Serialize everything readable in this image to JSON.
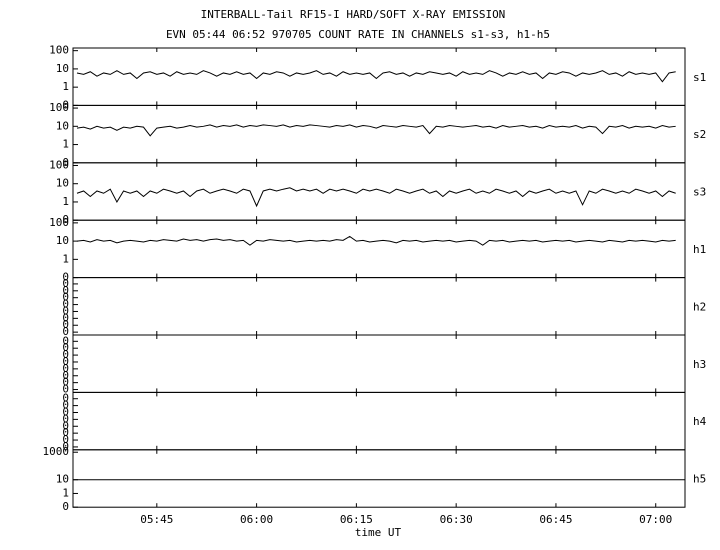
{
  "chart_data": {
    "type": "line",
    "title": "INTERBALL-Tail RF15-I HARD/SOFT X-RAY EMISSION",
    "subtitle": "EVN 05:44 06:52 970705  COUNT RATE IN CHANNELS s1-s3, h1-h5",
    "xlabel": "time UT",
    "color": "#000000",
    "xlim": [
      332.4,
      424.4
    ],
    "xticks": [
      {
        "value": 345,
        "label": "05:45"
      },
      {
        "value": 360,
        "label": "06:00"
      },
      {
        "value": 375,
        "label": "06:15"
      },
      {
        "value": 390,
        "label": "06:30"
      },
      {
        "value": 405,
        "label": "06:45"
      },
      {
        "value": 420,
        "label": "07:00"
      }
    ],
    "series": [
      {
        "name": "s1",
        "log": true,
        "ylim": [
          0.1,
          140
        ],
        "yticks": [
          100,
          10,
          1,
          {
            "value": 0.1,
            "label": "0"
          }
        ],
        "x": [
          333,
          334,
          335,
          336,
          337,
          338,
          339,
          340,
          341,
          342,
          343,
          344,
          345,
          346,
          347,
          348,
          349,
          350,
          351,
          352,
          353,
          354,
          355,
          356,
          357,
          358,
          359,
          360,
          361,
          362,
          363,
          364,
          365,
          366,
          367,
          368,
          369,
          370,
          371,
          372,
          373,
          374,
          375,
          376,
          377,
          378,
          379,
          380,
          381,
          382,
          383,
          384,
          385,
          386,
          387,
          388,
          389,
          390,
          391,
          392,
          393,
          394,
          395,
          396,
          397,
          398,
          399,
          400,
          401,
          402,
          403,
          404,
          405,
          406,
          407,
          408,
          409,
          410,
          411,
          412,
          413,
          414,
          415,
          416,
          417,
          418,
          419,
          420,
          421,
          422,
          423
        ],
        "values": [
          6,
          5,
          7,
          4,
          6,
          5,
          8,
          5,
          6,
          3,
          6,
          7,
          5,
          6,
          4,
          7,
          5,
          6,
          5,
          8,
          6,
          4,
          6,
          5,
          7,
          5,
          6,
          3,
          6,
          5,
          7,
          6,
          4,
          6,
          5,
          6,
          8,
          5,
          6,
          4,
          7,
          5,
          6,
          5,
          6,
          3,
          6,
          7,
          5,
          6,
          4,
          6,
          5,
          7,
          6,
          5,
          6,
          4,
          7,
          5,
          6,
          5,
          8,
          6,
          4,
          6,
          5,
          7,
          5,
          6,
          3,
          6,
          5,
          7,
          6,
          4,
          6,
          5,
          6,
          8,
          5,
          6,
          4,
          7,
          5,
          6,
          5,
          6,
          2,
          6,
          7
        ]
      },
      {
        "name": "s2",
        "log": true,
        "ylim": [
          0.1,
          140
        ],
        "yticks": [
          100,
          10,
          1,
          {
            "value": 0.1,
            "label": "0"
          }
        ],
        "x": [
          333,
          334,
          335,
          336,
          337,
          338,
          339,
          340,
          341,
          342,
          343,
          344,
          345,
          346,
          347,
          348,
          349,
          350,
          351,
          352,
          353,
          354,
          355,
          356,
          357,
          358,
          359,
          360,
          361,
          362,
          363,
          364,
          365,
          366,
          367,
          368,
          369,
          370,
          371,
          372,
          373,
          374,
          375,
          376,
          377,
          378,
          379,
          380,
          381,
          382,
          383,
          384,
          385,
          386,
          387,
          388,
          389,
          390,
          391,
          392,
          393,
          394,
          395,
          396,
          397,
          398,
          399,
          400,
          401,
          402,
          403,
          404,
          405,
          406,
          407,
          408,
          409,
          410,
          411,
          412,
          413,
          414,
          415,
          416,
          417,
          418,
          419,
          420,
          421,
          422,
          423
        ],
        "values": [
          8,
          9,
          7,
          10,
          8,
          9,
          6,
          9,
          8,
          10,
          9,
          3,
          8,
          9,
          10,
          8,
          9,
          11,
          9,
          10,
          12,
          9,
          11,
          10,
          12,
          9,
          11,
          10,
          12,
          11,
          10,
          12,
          9,
          11,
          10,
          12,
          11,
          10,
          9,
          11,
          10,
          12,
          9,
          11,
          10,
          8,
          11,
          10,
          9,
          11,
          10,
          9,
          11,
          4,
          10,
          9,
          11,
          10,
          9,
          10,
          11,
          9,
          10,
          8,
          11,
          9,
          10,
          11,
          9,
          10,
          8,
          11,
          9,
          10,
          9,
          11,
          8,
          10,
          9,
          4,
          10,
          9,
          11,
          8,
          10,
          9,
          10,
          8,
          11,
          9,
          10
        ]
      },
      {
        "name": "s3",
        "log": true,
        "ylim": [
          0.1,
          140
        ],
        "yticks": [
          100,
          10,
          1,
          {
            "value": 0.1,
            "label": "0"
          }
        ],
        "x": [
          333,
          334,
          335,
          336,
          337,
          338,
          339,
          340,
          341,
          342,
          343,
          344,
          345,
          346,
          347,
          348,
          349,
          350,
          351,
          352,
          353,
          354,
          355,
          356,
          357,
          358,
          359,
          360,
          361,
          362,
          363,
          364,
          365,
          366,
          367,
          368,
          369,
          370,
          371,
          372,
          373,
          374,
          375,
          376,
          377,
          378,
          379,
          380,
          381,
          382,
          383,
          384,
          385,
          386,
          387,
          388,
          389,
          390,
          391,
          392,
          393,
          394,
          395,
          396,
          397,
          398,
          399,
          400,
          401,
          402,
          403,
          404,
          405,
          406,
          407,
          408,
          409,
          410,
          411,
          412,
          413,
          414,
          415,
          416,
          417,
          418,
          419,
          420,
          421,
          422,
          423
        ],
        "values": [
          3,
          4,
          2,
          4,
          3,
          5,
          1,
          4,
          3,
          4,
          2,
          4,
          3,
          5,
          4,
          3,
          4,
          2,
          4,
          5,
          3,
          4,
          5,
          4,
          3,
          5,
          4,
          0.6,
          4,
          5,
          4,
          5,
          6,
          4,
          5,
          4,
          5,
          3,
          5,
          4,
          5,
          4,
          3,
          5,
          4,
          5,
          4,
          3,
          5,
          4,
          3,
          4,
          5,
          3,
          4,
          2,
          4,
          3,
          4,
          5,
          3,
          4,
          3,
          5,
          4,
          3,
          4,
          2,
          4,
          3,
          4,
          5,
          3,
          4,
          3,
          4,
          0.7,
          4,
          3,
          5,
          4,
          3,
          4,
          3,
          5,
          4,
          3,
          4,
          2,
          4,
          3
        ]
      },
      {
        "name": "h1",
        "log": true,
        "ylim": [
          0.1,
          140
        ],
        "yticks": [
          100,
          10,
          1,
          {
            "value": 0.1,
            "label": "0"
          }
        ],
        "x": [
          333,
          334,
          335,
          336,
          337,
          338,
          339,
          340,
          341,
          342,
          343,
          344,
          345,
          346,
          347,
          348,
          349,
          350,
          351,
          352,
          353,
          354,
          355,
          356,
          357,
          358,
          359,
          360,
          361,
          362,
          363,
          364,
          365,
          366,
          367,
          368,
          369,
          370,
          371,
          372,
          373,
          374,
          375,
          376,
          377,
          378,
          379,
          380,
          381,
          382,
          383,
          384,
          385,
          386,
          387,
          388,
          389,
          390,
          391,
          392,
          393,
          394,
          395,
          396,
          397,
          398,
          399,
          400,
          401,
          402,
          403,
          404,
          405,
          406,
          407,
          408,
          409,
          410,
          411,
          412,
          413,
          414,
          415,
          416,
          417,
          418,
          419,
          420,
          421,
          422,
          423
        ],
        "values": [
          10,
          11,
          9,
          12,
          10,
          11,
          8,
          10,
          11,
          10,
          9,
          11,
          10,
          12,
          11,
          10,
          13,
          11,
          12,
          10,
          12,
          13,
          11,
          12,
          10,
          11,
          6,
          11,
          10,
          12,
          11,
          10,
          11,
          9,
          10,
          11,
          10,
          11,
          10,
          12,
          11,
          18,
          10,
          11,
          9,
          10,
          11,
          10,
          8,
          11,
          10,
          11,
          9,
          10,
          11,
          10,
          11,
          9,
          10,
          11,
          10,
          6,
          11,
          10,
          11,
          9,
          10,
          11,
          10,
          11,
          9,
          10,
          11,
          10,
          11,
          9,
          10,
          11,
          10,
          9,
          11,
          10,
          9,
          11,
          10,
          11,
          10,
          9,
          11,
          10,
          11
        ]
      },
      {
        "name": "h2",
        "log": false,
        "ylim": [
          0,
          1
        ],
        "yticks": [
          {
            "value": 0.05,
            "label": "0"
          },
          {
            "value": 0.17,
            "label": "0"
          },
          {
            "value": 0.29,
            "label": "0"
          },
          {
            "value": 0.41,
            "label": "0"
          },
          {
            "value": 0.53,
            "label": "0"
          },
          {
            "value": 0.65,
            "label": "0"
          },
          {
            "value": 0.77,
            "label": "0"
          },
          {
            "value": 0.89,
            "label": "0"
          }
        ]
      },
      {
        "name": "h3",
        "log": false,
        "ylim": [
          0,
          1
        ],
        "yticks": [
          {
            "value": 0.05,
            "label": "0"
          },
          {
            "value": 0.17,
            "label": "0"
          },
          {
            "value": 0.29,
            "label": "0"
          },
          {
            "value": 0.41,
            "label": "0"
          },
          {
            "value": 0.53,
            "label": "0"
          },
          {
            "value": 0.65,
            "label": "0"
          },
          {
            "value": 0.77,
            "label": "0"
          },
          {
            "value": 0.89,
            "label": "0"
          }
        ]
      },
      {
        "name": "h4",
        "log": false,
        "ylim": [
          0,
          1
        ],
        "yticks": [
          {
            "value": 0.05,
            "label": "0"
          },
          {
            "value": 0.17,
            "label": "0"
          },
          {
            "value": 0.29,
            "label": "0"
          },
          {
            "value": 0.41,
            "label": "0"
          },
          {
            "value": 0.53,
            "label": "0"
          },
          {
            "value": 0.65,
            "label": "0"
          },
          {
            "value": 0.77,
            "label": "0"
          },
          {
            "value": 0.89,
            "label": "0"
          }
        ]
      },
      {
        "name": "h5",
        "log": true,
        "ylim": [
          0.1,
          1500
        ],
        "yticks": [
          1000,
          10,
          1,
          {
            "value": 0.1,
            "label": "0"
          }
        ],
        "x": [
          332.4,
          424.4
        ],
        "values": [
          10,
          10
        ]
      }
    ]
  }
}
